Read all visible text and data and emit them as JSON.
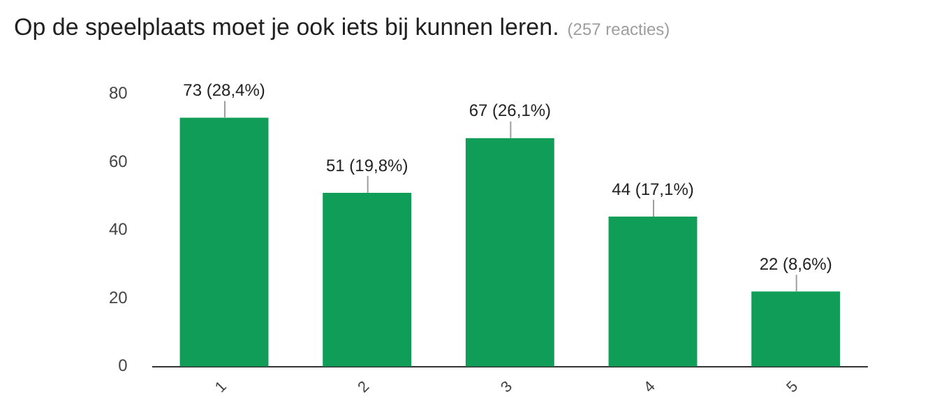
{
  "chart_data": {
    "type": "bar",
    "title": "Op de speelplaats moet je ook iets bij kunnen leren.",
    "subtitle": "(257 reacties)",
    "categories": [
      "1",
      "2",
      "3",
      "4",
      "5"
    ],
    "values": [
      73,
      51,
      67,
      44,
      22
    ],
    "value_labels": [
      "73 (28,4%)",
      "51 (19,8%)",
      "67 (26,1%)",
      "44 (17,1%)",
      "22 (8,6%)"
    ],
    "color": "#109d58",
    "ylim": [
      0,
      80
    ],
    "yticks": [
      0,
      20,
      40,
      60,
      80
    ],
    "grid": false,
    "legend": false
  }
}
